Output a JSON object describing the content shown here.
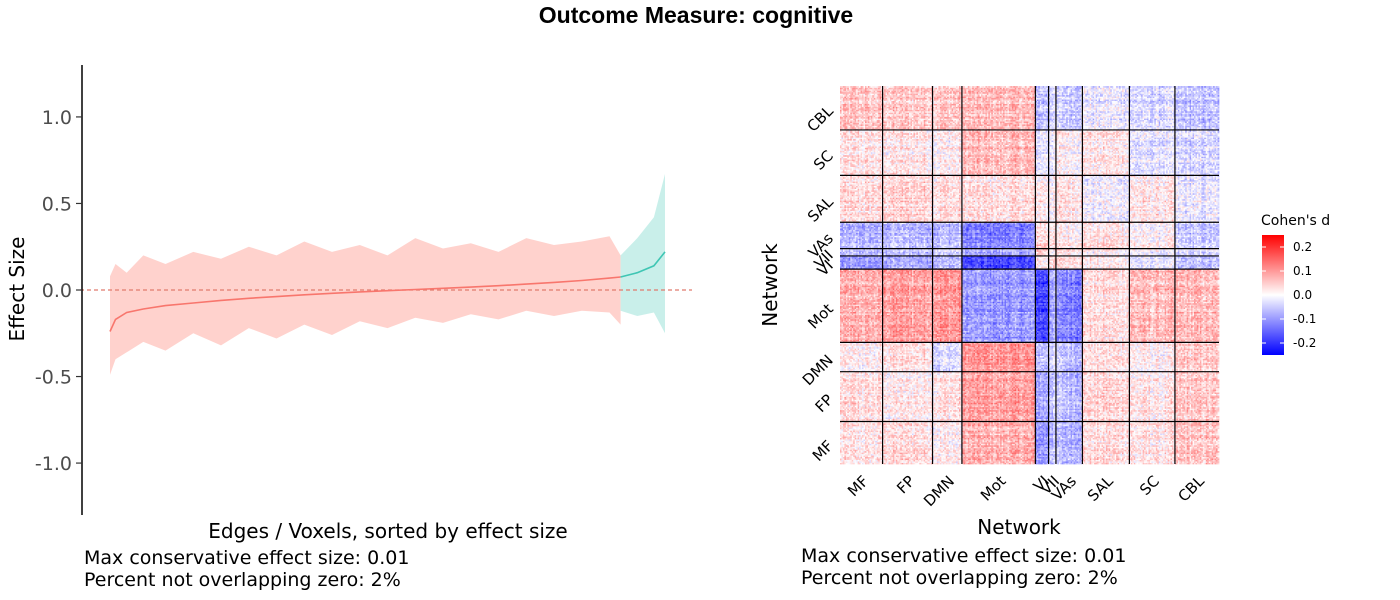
{
  "title": "Outcome Measure: cognitive",
  "colors": {
    "negative_fill": "#ffcdc8",
    "negative_line": "#f8766d",
    "positive_fill": "#c3ede8",
    "positive_line": "#3fc6b4",
    "zero_line": "#e07b6e"
  },
  "chart_data": [
    {
      "type": "area",
      "title": "",
      "xlabel": "Edges / Voxels, sorted by effect size",
      "ylabel": "Effect Size",
      "ylim": [
        -1.3,
        1.3
      ],
      "yticks": [
        "-1.0",
        "-0.5",
        "0.0",
        "0.5",
        "1.0"
      ],
      "ytick_values": [
        -1.0,
        -0.5,
        0.0,
        0.5,
        1.0
      ],
      "reference_line_y": 0.0,
      "grid": false,
      "series": [
        {
          "x": [
            0,
            0.01,
            0.03,
            0.06,
            0.1,
            0.15,
            0.2,
            0.25,
            0.3,
            0.35,
            0.4,
            0.45,
            0.5,
            0.55,
            0.6,
            0.65,
            0.7,
            0.75,
            0.8,
            0.85,
            0.9,
            0.92
          ],
          "estimate": [
            -0.24,
            -0.17,
            -0.13,
            -0.11,
            -0.09,
            -0.075,
            -0.06,
            -0.048,
            -0.038,
            -0.028,
            -0.019,
            -0.011,
            -0.004,
            0.003,
            0.01,
            0.017,
            0.025,
            0.034,
            0.044,
            0.055,
            0.069,
            0.075
          ],
          "upper": [
            0.08,
            0.15,
            0.1,
            0.2,
            0.15,
            0.22,
            0.18,
            0.25,
            0.2,
            0.28,
            0.22,
            0.26,
            0.2,
            0.3,
            0.24,
            0.27,
            0.22,
            0.3,
            0.26,
            0.28,
            0.31,
            0.2
          ],
          "lower": [
            -0.49,
            -0.4,
            -0.36,
            -0.3,
            -0.35,
            -0.25,
            -0.32,
            -0.22,
            -0.28,
            -0.2,
            -0.26,
            -0.18,
            -0.22,
            -0.16,
            -0.19,
            -0.14,
            -0.17,
            -0.12,
            -0.15,
            -0.12,
            -0.13,
            -0.2
          ]
        },
        {
          "x": [
            0.92,
            0.95,
            0.98,
            1.0
          ],
          "estimate": [
            0.075,
            0.1,
            0.14,
            0.22
          ],
          "upper": [
            0.2,
            0.3,
            0.42,
            0.67
          ],
          "lower": [
            -0.12,
            -0.15,
            -0.13,
            -0.25
          ]
        }
      ],
      "footnote_lines": [
        "Max conservative effect size: 0.01",
        "Percent not overlapping zero: 2%"
      ]
    },
    {
      "type": "heatmap",
      "title": "",
      "xlabel": "Network",
      "ylabel": "Network",
      "x_networks": [
        "MF",
        "FP",
        "DMN",
        "Mot",
        "VI",
        "VII",
        "VAs",
        "SAL",
        "SC",
        "CBL"
      ],
      "y_networks": [
        "MF",
        "FP",
        "DMN",
        "Mot",
        "VI",
        "VII",
        "VAs",
        "SAL",
        "SC",
        "CBL"
      ],
      "network_sizes": [
        29,
        34,
        20,
        50,
        9,
        5,
        18,
        32,
        31,
        30
      ],
      "block_means": [
        [
          0.02,
          0.03,
          0.01,
          0.07,
          -0.1,
          -0.06,
          -0.07,
          0.03,
          0.02,
          0.05
        ],
        [
          0.03,
          0.02,
          0.03,
          0.09,
          -0.08,
          -0.05,
          -0.06,
          0.04,
          0.02,
          0.05
        ],
        [
          0.01,
          0.03,
          -0.03,
          0.1,
          -0.06,
          -0.03,
          -0.06,
          0.03,
          0.01,
          0.05
        ],
        [
          0.07,
          0.09,
          0.1,
          -0.1,
          -0.18,
          -0.08,
          -0.12,
          0.03,
          0.06,
          0.06
        ],
        [
          -0.1,
          -0.08,
          -0.06,
          -0.18,
          0.02,
          0.05,
          0.04,
          0.02,
          -0.02,
          -0.06
        ],
        [
          -0.06,
          -0.05,
          -0.03,
          -0.08,
          0.05,
          0.0,
          0.03,
          0.01,
          -0.01,
          -0.03
        ],
        [
          -0.07,
          -0.06,
          -0.06,
          -0.12,
          0.04,
          0.03,
          0.02,
          0.03,
          0.01,
          -0.05
        ],
        [
          0.03,
          0.04,
          0.03,
          0.03,
          0.02,
          0.01,
          0.03,
          -0.01,
          0.02,
          -0.02
        ],
        [
          0.02,
          0.02,
          0.01,
          0.06,
          -0.02,
          -0.01,
          0.01,
          0.02,
          -0.03,
          -0.04
        ],
        [
          0.05,
          0.05,
          0.05,
          0.06,
          -0.06,
          -0.03,
          -0.05,
          -0.02,
          -0.04,
          -0.06
        ]
      ],
      "legend": {
        "title": "Cohen's d",
        "ticks": [
          "0.2",
          "0.1",
          "0.0",
          "-0.1",
          "-0.2"
        ],
        "tick_values": [
          0.2,
          0.1,
          0.0,
          -0.1,
          -0.2
        ],
        "range": [
          -0.25,
          0.25
        ],
        "colors": [
          "#0000ff",
          "#ffffff",
          "#ff0000"
        ],
        "placement": "right"
      },
      "footnote_lines": [
        "Max conservative effect size: 0.01",
        "Percent not overlapping zero: 2%"
      ]
    }
  ]
}
